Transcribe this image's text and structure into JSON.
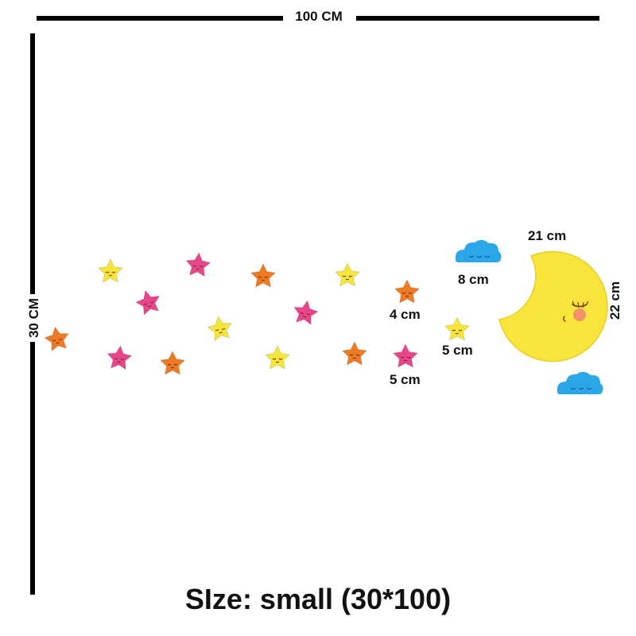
{
  "dimensions": {
    "width_label": "100 CM",
    "height_label": "30 CM"
  },
  "measurements": {
    "moon_width": "21 cm",
    "moon_height": "22 cm",
    "cloud": "8 cm",
    "star_orange": "4 cm",
    "star_pink": "5 cm",
    "star_yellow": "5 cm"
  },
  "caption": "SIze: small (30*100)",
  "colors": {
    "star_yellow": "#F6E63A",
    "star_pink": "#E9458A",
    "star_orange": "#EE7A22",
    "moon": "#F8E43B",
    "cloud": "#2BA6E8",
    "cheek": "#F3916A"
  },
  "stars": [
    {
      "color": "orange"
    },
    {
      "color": "yellow"
    },
    {
      "color": "pink"
    },
    {
      "color": "pink"
    },
    {
      "color": "orange"
    },
    {
      "color": "pink"
    },
    {
      "color": "yellow"
    },
    {
      "color": "orange"
    },
    {
      "color": "yellow"
    },
    {
      "color": "yellow"
    },
    {
      "color": "pink"
    },
    {
      "color": "orange"
    },
    {
      "color": "orange"
    },
    {
      "color": "pink"
    },
    {
      "color": "yellow"
    }
  ]
}
